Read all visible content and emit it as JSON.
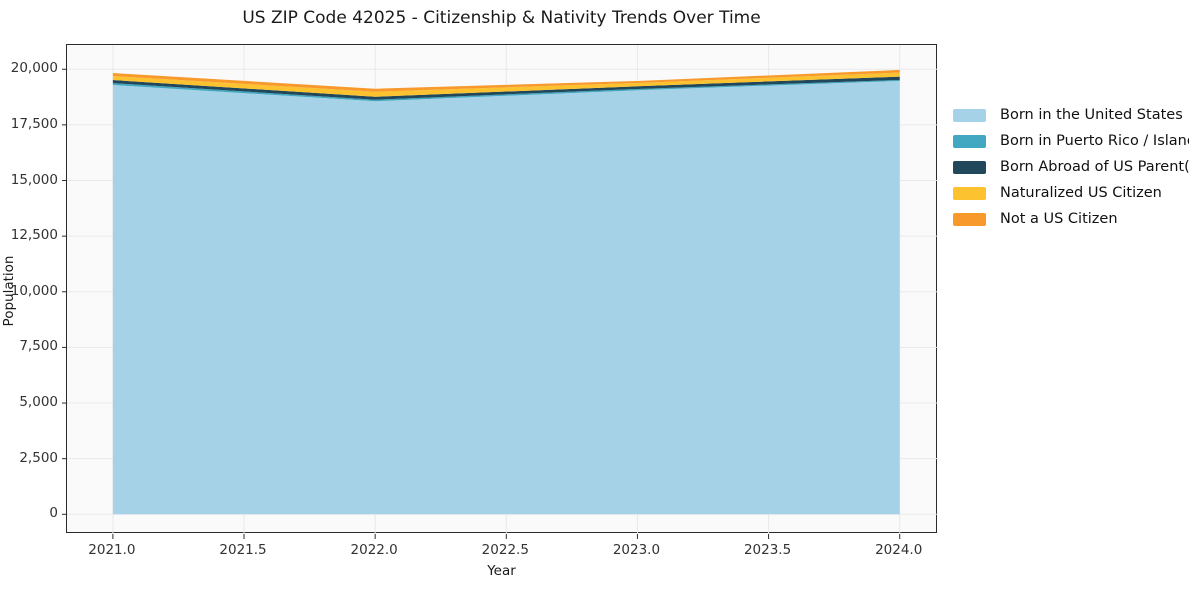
{
  "title": "US ZIP Code 42025 - Citizenship & Nativity Trends Over Time",
  "chart_data": {
    "type": "area",
    "stacked": true,
    "title": "US ZIP Code 42025 - Citizenship & Nativity Trends Over Time",
    "xlabel": "Year",
    "ylabel": "Population",
    "x": [
      2021,
      2022,
      2023,
      2024
    ],
    "series": [
      {
        "name": "Born in the United States",
        "color": "#a6d2e7",
        "values": [
          19290,
          18560,
          19055,
          19475
        ]
      },
      {
        "name": "Born in Puerto Rico / Islands",
        "color": "#42a8c2",
        "values": [
          85,
          70,
          60,
          45
        ]
      },
      {
        "name": "Born Abroad of US Parent(s)",
        "color": "#21485a",
        "values": [
          140,
          135,
          120,
          150
        ]
      },
      {
        "name": "Naturalized US Citizen",
        "color": "#fcc22f",
        "values": [
          180,
          225,
          150,
          180
        ]
      },
      {
        "name": "Not a US Citizen",
        "color": "#f8992c",
        "values": [
          135,
          135,
          90,
          120
        ]
      }
    ],
    "totals": [
      19830,
      19125,
      19475,
      19970
    ],
    "xlim": [
      2020.825,
      2024.146
    ],
    "ylim": [
      -885,
      21090
    ],
    "x_ticks": {
      "values": [
        2021,
        2021.5,
        2022,
        2022.5,
        2023,
        2023.5,
        2024
      ],
      "labels": [
        "2021.0",
        "2021.5",
        "2022.0",
        "2022.5",
        "2023.0",
        "2023.5",
        "2024.0"
      ]
    },
    "y_ticks": {
      "values": [
        0,
        2500,
        5000,
        7500,
        10000,
        12500,
        15000,
        17500,
        20000
      ],
      "labels": [
        "0",
        "2,500",
        "5,000",
        "7,500",
        "10,000",
        "12,500",
        "15,000",
        "17,500",
        "20,000"
      ]
    },
    "grid": true,
    "legend_position": "right"
  },
  "style": {
    "fig_bg": "#ffffff",
    "plot_bg": "#fafafa",
    "grid_color": "#e9e9e9",
    "spine_color": "#2b2b2b",
    "tick_color": "#333333",
    "text_color": "#1a1a1a"
  }
}
